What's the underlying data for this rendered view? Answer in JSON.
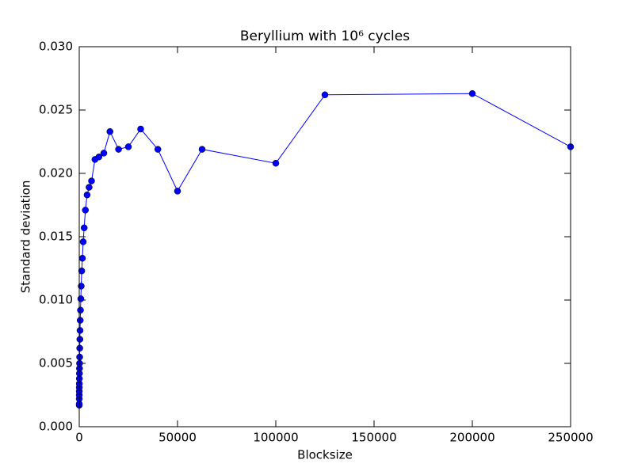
{
  "chart_data": {
    "type": "line",
    "title": "Beryllium with 10⁶ cycles",
    "x_label": "Blocksize",
    "y_label": "Standard deviation",
    "x": [
      1,
      2,
      4,
      8,
      16,
      32,
      50,
      64,
      100,
      125,
      160,
      200,
      250,
      320,
      400,
      500,
      625,
      800,
      1000,
      1250,
      1600,
      2000,
      2500,
      3125,
      4000,
      5000,
      6250,
      8000,
      10000,
      12500,
      15625,
      20000,
      25000,
      31250,
      40000,
      50000,
      62500,
      100000,
      125000,
      200000,
      250000
    ],
    "series": [
      {
        "name": "Standard deviation",
        "color": "#0000ff",
        "values": [
          0.0017,
          0.0018,
          0.0022,
          0.0025,
          0.0028,
          0.0031,
          0.0034,
          0.0038,
          0.0042,
          0.0046,
          0.005,
          0.0055,
          0.0062,
          0.0069,
          0.0076,
          0.0084,
          0.0092,
          0.0101,
          0.0111,
          0.0123,
          0.0133,
          0.0146,
          0.0157,
          0.0171,
          0.0183,
          0.0189,
          0.0194,
          0.0211,
          0.0213,
          0.0216,
          0.0233,
          0.0219,
          0.0221,
          0.0235,
          0.0219,
          0.0186,
          0.0219,
          0.0208,
          0.0262,
          0.0263,
          0.0221
        ]
      }
    ],
    "xlim": [
      0,
      250000
    ],
    "xticks": [
      0,
      50000,
      100000,
      150000,
      200000,
      250000
    ],
    "ylim": [
      0,
      0.03
    ],
    "yticks": [
      {
        "value": 0,
        "label": "0.000"
      },
      {
        "value": 0.005,
        "label": "0.005"
      },
      {
        "value": 0.01,
        "label": "0.010"
      },
      {
        "value": 0.015,
        "label": "0.015"
      },
      {
        "value": 0.02,
        "label": "0.020"
      },
      {
        "value": 0.025,
        "label": "0.025"
      },
      {
        "value": 0.03,
        "label": "0.030"
      }
    ],
    "grid": false
  }
}
